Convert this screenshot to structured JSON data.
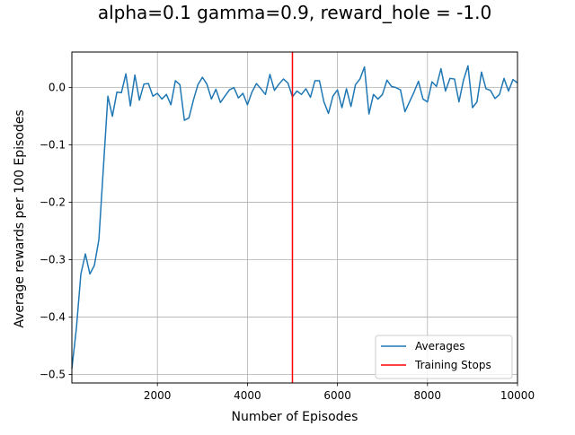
{
  "chart_data": {
    "type": "line",
    "title": "alpha=0.1 gamma=0.9, reward_hole = -1.0",
    "xlabel": "Number of Episodes",
    "ylabel": "Average rewards per 100 Episodes",
    "xlim": [
      100,
      10000
    ],
    "ylim": [
      -0.515,
      0.062
    ],
    "x_ticks": [
      2000,
      4000,
      6000,
      8000,
      10000
    ],
    "x_tick_labels": [
      "2000",
      "4000",
      "6000",
      "8000",
      "10000"
    ],
    "y_ticks": [
      0.0,
      -0.1,
      -0.2,
      -0.3,
      -0.4,
      -0.5
    ],
    "y_tick_labels": [
      "0.0",
      "−0.1",
      "−0.2",
      "−0.3",
      "−0.4",
      "−0.5"
    ],
    "grid": true,
    "legend_position": "bottom-right",
    "series": [
      {
        "name": "Averages",
        "color": "#1f77b4",
        "x": [
          100,
          200,
          300,
          400,
          500,
          600,
          700,
          800,
          900,
          1000,
          1100,
          1200,
          1300,
          1400,
          1500,
          1600,
          1700,
          1800,
          1900,
          2000,
          2100,
          2200,
          2300,
          2400,
          2500,
          2600,
          2700,
          2800,
          2900,
          3000,
          3100,
          3200,
          3300,
          3400,
          3500,
          3600,
          3700,
          3800,
          3900,
          4000,
          4100,
          4200,
          4300,
          4400,
          4500,
          4600,
          4700,
          4800,
          4900,
          5000,
          5100,
          5200,
          5300,
          5400,
          5500,
          5600,
          5700,
          5800,
          5900,
          6000,
          6100,
          6200,
          6300,
          6400,
          6500,
          6600,
          6700,
          6800,
          6900,
          7000,
          7100,
          7200,
          7300,
          7400,
          7500,
          7600,
          7700,
          7800,
          7900,
          8000,
          8100,
          8200,
          8300,
          8400,
          8500,
          8600,
          8700,
          8800,
          8900,
          9000,
          9100,
          9200,
          9300,
          9400,
          9500,
          9600,
          9700,
          9800,
          9900,
          10000
        ],
        "y": [
          -0.49,
          -0.42,
          -0.325,
          -0.29,
          -0.325,
          -0.31,
          -0.265,
          -0.14,
          -0.015,
          -0.05,
          -0.008,
          -0.009,
          0.024,
          -0.032,
          0.022,
          -0.022,
          0.006,
          0.007,
          -0.015,
          -0.01,
          -0.02,
          -0.012,
          -0.03,
          0.012,
          0.005,
          -0.057,
          -0.053,
          -0.022,
          0.005,
          0.018,
          0.006,
          -0.02,
          -0.003,
          -0.026,
          -0.015,
          -0.004,
          0.0,
          -0.018,
          -0.01,
          -0.03,
          -0.008,
          0.007,
          -0.002,
          -0.012,
          0.023,
          -0.005,
          0.006,
          0.015,
          0.008,
          -0.016,
          -0.006,
          -0.012,
          -0.002,
          -0.017,
          0.012,
          0.012,
          -0.025,
          -0.045,
          -0.015,
          -0.004,
          -0.035,
          -0.002,
          -0.033,
          0.005,
          0.015,
          0.036,
          -0.046,
          -0.012,
          -0.02,
          -0.012,
          0.013,
          0.002,
          0.0,
          -0.004,
          -0.042,
          -0.025,
          -0.008,
          0.011,
          -0.02,
          -0.025,
          0.01,
          0.002,
          0.033,
          -0.006,
          0.016,
          0.015,
          -0.025,
          0.013,
          0.038,
          -0.035,
          -0.025,
          0.027,
          -0.002,
          -0.005,
          -0.019,
          -0.012,
          0.016,
          -0.006,
          0.014,
          0.008
        ]
      },
      {
        "name": "Training Stops",
        "color": "#ff0000",
        "x": [
          5000,
          5000
        ],
        "y": [
          -0.515,
          0.062
        ]
      }
    ]
  }
}
